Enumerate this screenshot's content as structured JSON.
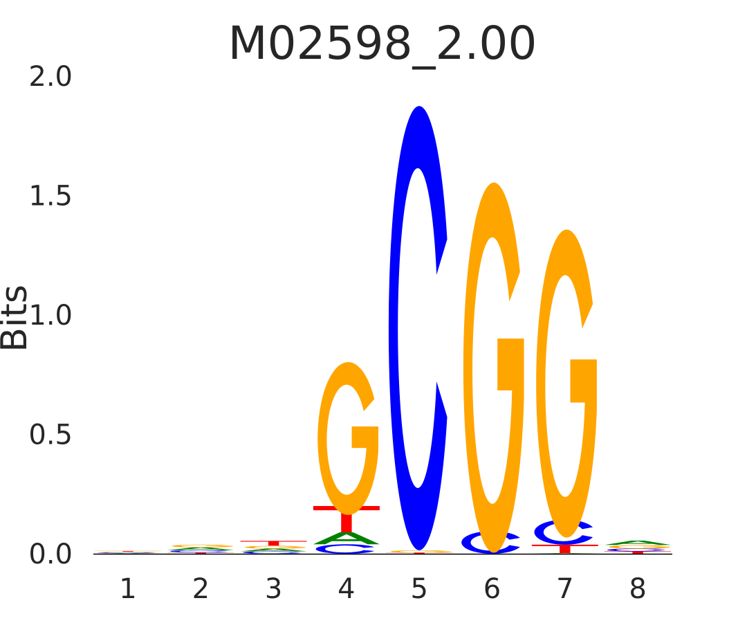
{
  "chart_data": {
    "type": "sequence-logo",
    "title": "M02598_2.00",
    "ylabel": "Bits",
    "xlabel": "",
    "ylim": [
      0,
      2.0
    ],
    "yticks": [
      "0.0",
      "0.5",
      "1.0",
      "1.5",
      "2.0"
    ],
    "positions": [
      "1",
      "2",
      "3",
      "4",
      "5",
      "6",
      "7",
      "8"
    ],
    "colors": {
      "A": "#008000",
      "C": "#0000ff",
      "G": "#ffa500",
      "T": "#ff0000"
    },
    "stacks": [
      [
        {
          "l": "A",
          "v": 0.003
        },
        {
          "l": "C",
          "v": 0.003
        },
        {
          "l": "G",
          "v": 0.003
        },
        {
          "l": "T",
          "v": 0.003
        }
      ],
      [
        {
          "l": "T",
          "v": 0.005
        },
        {
          "l": "C",
          "v": 0.01
        },
        {
          "l": "A",
          "v": 0.012
        },
        {
          "l": "G",
          "v": 0.012
        }
      ],
      [
        {
          "l": "C",
          "v": 0.01
        },
        {
          "l": "A",
          "v": 0.012
        },
        {
          "l": "G",
          "v": 0.012
        },
        {
          "l": "T",
          "v": 0.02
        }
      ],
      [
        {
          "l": "C",
          "v": 0.04
        },
        {
          "l": "A",
          "v": 0.05
        },
        {
          "l": "T",
          "v": 0.11
        },
        {
          "l": "G",
          "v": 0.64
        }
      ],
      [
        {
          "l": "T",
          "v": 0.005
        },
        {
          "l": "G",
          "v": 0.01
        },
        {
          "l": "C",
          "v": 1.86
        }
      ],
      [
        {
          "l": "C",
          "v": 0.095
        },
        {
          "l": "G",
          "v": 1.55
        }
      ],
      [
        {
          "l": "A",
          "v": 0.003
        },
        {
          "l": "T",
          "v": 0.035
        },
        {
          "l": "C",
          "v": 0.105
        },
        {
          "l": "G",
          "v": 1.29
        }
      ],
      [
        {
          "l": "T",
          "v": 0.01
        },
        {
          "l": "C",
          "v": 0.012
        },
        {
          "l": "G",
          "v": 0.015
        },
        {
          "l": "A",
          "v": 0.018
        }
      ]
    ]
  }
}
